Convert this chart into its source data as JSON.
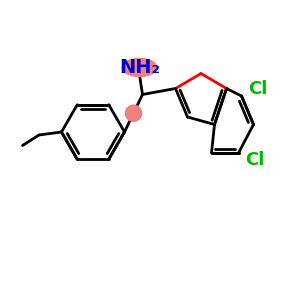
{
  "background_color": "#ffffff",
  "bond_color": "#000000",
  "bond_width": 2.0,
  "O_color": "#ff0000",
  "Cl_color": "#00bb00",
  "N_color": "#0000cc",
  "NH2_bg_color": "#f08080",
  "NH2_fontsize": 14,
  "Cl_fontsize": 13,
  "highlight_pink": "#f08080",
  "xlim": [
    0,
    10
  ],
  "ylim": [
    0,
    10
  ]
}
